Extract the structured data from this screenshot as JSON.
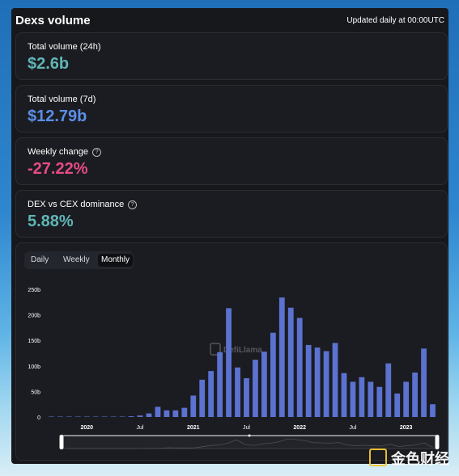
{
  "header": {
    "title": "Dexs volume",
    "update_note": "Updated daily at 00:00UTC"
  },
  "stats": [
    {
      "label": "Total volume (24h)",
      "value": "$2.6b",
      "color": "#5fb6b6",
      "help": false
    },
    {
      "label": "Total volume (7d)",
      "value": "$12.79b",
      "color": "#5b8fe8",
      "help": false
    },
    {
      "label": "Weekly change",
      "value": "-27.22%",
      "color": "#e84a86",
      "help": true
    },
    {
      "label": "DEX vs CEX dominance",
      "value": "5.88%",
      "color": "#5fb6b6",
      "help": true
    }
  ],
  "tabs": [
    {
      "label": "Daily",
      "active": false
    },
    {
      "label": "Weekly",
      "active": false
    },
    {
      "label": "Monthly",
      "active": true
    }
  ],
  "chart_data": {
    "type": "bar",
    "title": "",
    "xlabel": "",
    "ylabel": "",
    "ylim": [
      0,
      250
    ],
    "y_unit": "b",
    "yticks": [
      "0",
      "50b",
      "100b",
      "150b",
      "200b",
      "250b"
    ],
    "xticks": [
      "2020",
      "Jul",
      "2021",
      "Jul",
      "2022",
      "Jul",
      "2023"
    ],
    "xtick_months": [
      "2020-01",
      "2020-07",
      "2021-01",
      "2021-07",
      "2022-01",
      "2022-07",
      "2023-01"
    ],
    "categories": [
      "2019-09",
      "2019-10",
      "2019-11",
      "2019-12",
      "2020-01",
      "2020-02",
      "2020-03",
      "2020-04",
      "2020-05",
      "2020-06",
      "2020-07",
      "2020-08",
      "2020-09",
      "2020-10",
      "2020-11",
      "2020-12",
      "2021-01",
      "2021-02",
      "2021-03",
      "2021-04",
      "2021-05",
      "2021-06",
      "2021-07",
      "2021-08",
      "2021-09",
      "2021-10",
      "2021-11",
      "2021-12",
      "2022-01",
      "2022-02",
      "2022-03",
      "2022-04",
      "2022-05",
      "2022-06",
      "2022-07",
      "2022-08",
      "2022-09",
      "2022-10",
      "2022-11",
      "2022-12",
      "2023-01",
      "2023-02",
      "2023-03",
      "2023-04"
    ],
    "values": [
      0.3,
      0.3,
      0.3,
      0.4,
      0.6,
      0.7,
      0.8,
      0.5,
      0.8,
      1.5,
      3,
      7,
      20,
      13,
      13,
      18,
      42,
      73,
      90,
      127,
      213,
      97,
      76,
      112,
      128,
      165,
      234,
      214,
      194,
      141,
      136,
      129,
      145,
      86,
      69,
      78,
      69,
      59,
      105,
      46,
      69,
      87,
      134,
      25
    ],
    "bar_color": "#5b72d0",
    "grid": false,
    "legend": "none",
    "brush": true
  },
  "watermarks": {
    "chart": "DefiLlama",
    "corner": "金色财经"
  }
}
